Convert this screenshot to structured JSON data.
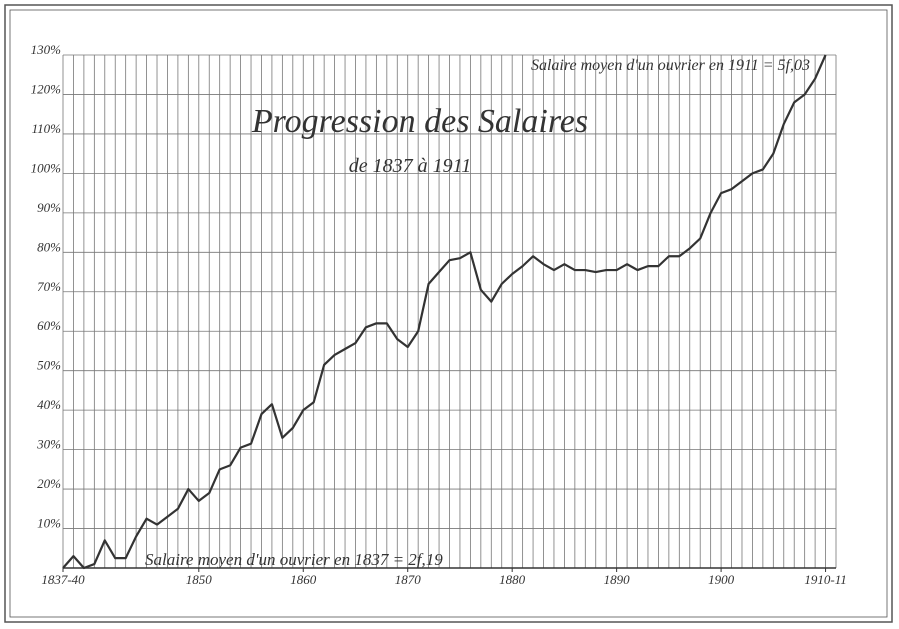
{
  "chart_data": {
    "type": "line",
    "title": "Progression des Salaires",
    "subtitle": "de 1837 à 1911",
    "annotations": [
      "Salaire moyen d'un ouvrier en 1911 = 5f,03",
      "Salaire moyen d'un ouvrier en 1837 = 2f,19"
    ],
    "x": [
      1837,
      1838,
      1839,
      1840,
      1841,
      1842,
      1843,
      1844,
      1845,
      1846,
      1847,
      1848,
      1849,
      1850,
      1851,
      1852,
      1853,
      1854,
      1855,
      1856,
      1857,
      1858,
      1859,
      1860,
      1861,
      1862,
      1863,
      1864,
      1865,
      1866,
      1867,
      1868,
      1869,
      1870,
      1871,
      1872,
      1873,
      1874,
      1875,
      1876,
      1877,
      1878,
      1879,
      1880,
      1881,
      1882,
      1883,
      1884,
      1885,
      1886,
      1887,
      1888,
      1889,
      1890,
      1891,
      1892,
      1893,
      1894,
      1895,
      1896,
      1897,
      1898,
      1899,
      1900,
      1901,
      1902,
      1903,
      1904,
      1905,
      1906,
      1907,
      1908,
      1909,
      1910
    ],
    "series": [
      {
        "name": "Salaire",
        "color": "#333333",
        "values": [
          0,
          3,
          0,
          1,
          7,
          2.5,
          2.5,
          8,
          12.5,
          11,
          13,
          15,
          20,
          17,
          19,
          25,
          26,
          30.5,
          31.5,
          39,
          41.5,
          33,
          35.5,
          40,
          42,
          51.5,
          54,
          55.5,
          57,
          61,
          62,
          62,
          58,
          56,
          60,
          72,
          75,
          78,
          78.5,
          80,
          70.5,
          67.5,
          72,
          74.5,
          76.5,
          79,
          77,
          75.5,
          77,
          75.5,
          75.5,
          75,
          75.5,
          75.5,
          77,
          75.5,
          76.5,
          76.5,
          79,
          79,
          81,
          83.5,
          90,
          95,
          96,
          98,
          100,
          101,
          105,
          112.5,
          118,
          120,
          124,
          130
        ]
      }
    ],
    "xlim": [
      1837,
      1911
    ],
    "xticks": [
      {
        "value": 1837,
        "label": "1837-40"
      },
      1850,
      1860,
      1870,
      1880,
      1890,
      1900,
      {
        "value": 1910,
        "label": "1910-11"
      }
    ],
    "ylim": [
      0,
      130
    ],
    "yticks": [
      {
        "value": 10,
        "label": "10%"
      },
      {
        "value": 20,
        "label": "20%"
      },
      {
        "value": 30,
        "label": "30%"
      },
      {
        "value": 40,
        "label": "40%"
      },
      {
        "value": 50,
        "label": "50%"
      },
      {
        "value": 60,
        "label": "60%"
      },
      {
        "value": 70,
        "label": "70%"
      },
      {
        "value": 80,
        "label": "80%"
      },
      {
        "value": 90,
        "label": "90%"
      },
      {
        "value": 100,
        "label": "100%"
      },
      {
        "value": 110,
        "label": "110%"
      },
      {
        "value": 120,
        "label": "120%"
      },
      {
        "value": 130,
        "label": "130%"
      }
    ],
    "grid": true
  }
}
